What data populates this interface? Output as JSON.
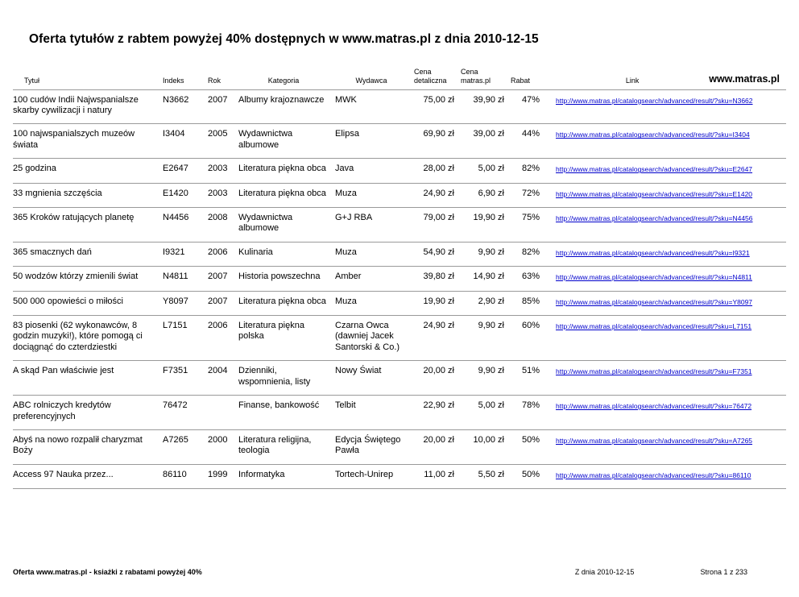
{
  "page": {
    "title": "Oferta tytułów z rabtem powyżej 40% dostępnych w www.matras.pl z dnia 2010-12-15",
    "brand": "www.matras.pl"
  },
  "table": {
    "headers": {
      "title": "Tytuł",
      "index": "Indeks",
      "year": "Rok",
      "category": "Kategoria",
      "publisher": "Wydawca",
      "price_retail": "Cena detaliczna",
      "price_matras": "Cena matras.pl",
      "discount": "Rabat",
      "link": "Link"
    },
    "rows": [
      {
        "title": "100 cudów Indii Najwspanialsze skarby cywilizacji i natury",
        "index": "N3662",
        "year": "2007",
        "category": "Albumy krajoznawcze",
        "publisher": "MWK",
        "price_retail": "75,00 zł",
        "price_matras": "39,90 zł",
        "discount": "47%",
        "link": "http://www.matras.pl/catalogsearch/advanced/result/?sku=N3662"
      },
      {
        "title": "100 najwspanialszych muzeów świata",
        "index": "I3404",
        "year": "2005",
        "category": "Wydawnictwa albumowe",
        "publisher": "Elipsa",
        "price_retail": "69,90 zł",
        "price_matras": "39,00 zł",
        "discount": "44%",
        "link": "http://www.matras.pl/catalogsearch/advanced/result/?sku=I3404"
      },
      {
        "title": "25 godzina",
        "index": "E2647",
        "year": "2003",
        "category": "Literatura piękna obca",
        "publisher": "Java",
        "price_retail": "28,00 zł",
        "price_matras": "5,00 zł",
        "discount": "82%",
        "link": "http://www.matras.pl/catalogsearch/advanced/result/?sku=E2647"
      },
      {
        "title": "33 mgnienia szczęścia",
        "index": "E1420",
        "year": "2003",
        "category": "Literatura piękna obca",
        "publisher": "Muza",
        "price_retail": "24,90 zł",
        "price_matras": "6,90 zł",
        "discount": "72%",
        "link": "http://www.matras.pl/catalogsearch/advanced/result/?sku=E1420"
      },
      {
        "title": "365 Kroków ratujących planetę",
        "index": "N4456",
        "year": "2008",
        "category": "Wydawnictwa albumowe",
        "publisher": "G+J RBA",
        "price_retail": "79,00 zł",
        "price_matras": "19,90 zł",
        "discount": "75%",
        "link": "http://www.matras.pl/catalogsearch/advanced/result/?sku=N4456"
      },
      {
        "title": "365 smacznych dań",
        "index": "I9321",
        "year": "2006",
        "category": "Kulinaria",
        "publisher": "Muza",
        "price_retail": "54,90 zł",
        "price_matras": "9,90 zł",
        "discount": "82%",
        "link": "http://www.matras.pl/catalogsearch/advanced/result/?sku=I9321"
      },
      {
        "title": "50 wodzów którzy zmienili świat",
        "index": "N4811",
        "year": "2007",
        "category": "Historia powszechna",
        "publisher": "Amber",
        "price_retail": "39,80 zł",
        "price_matras": "14,90 zł",
        "discount": "63%",
        "link": "http://www.matras.pl/catalogsearch/advanced/result/?sku=N4811"
      },
      {
        "title": "500 000 opowieści o miłości",
        "index": "Y8097",
        "year": "2007",
        "category": "Literatura piękna obca",
        "publisher": "Muza",
        "price_retail": "19,90 zł",
        "price_matras": "2,90 zł",
        "discount": "85%",
        "link": "http://www.matras.pl/catalogsearch/advanced/result/?sku=Y8097"
      },
      {
        "title": "83 piosenki (62 wykonawców, 8 godzin muzyki!), które pomogą ci dociągnąć do czterdziestki",
        "index": "L7151",
        "year": "2006",
        "category": "Literatura piękna polska",
        "publisher": "Czarna Owca (dawniej Jacek Santorski & Co.)",
        "price_retail": "24,90 zł",
        "price_matras": "9,90 zł",
        "discount": "60%",
        "link": "http://www.matras.pl/catalogsearch/advanced/result/?sku=L7151"
      },
      {
        "title": "A skąd Pan właściwie jest",
        "index": "F7351",
        "year": "2004",
        "category": "Dzienniki, wspomnienia, listy",
        "publisher": "Nowy Świat",
        "price_retail": "20,00 zł",
        "price_matras": "9,90 zł",
        "discount": "51%",
        "link": "http://www.matras.pl/catalogsearch/advanced/result/?sku=F7351"
      },
      {
        "title": "ABC rolniczych kredytów preferencyjnych",
        "index": "76472",
        "year": "",
        "category": "Finanse, bankowość",
        "publisher": "Telbit",
        "price_retail": "22,90 zł",
        "price_matras": "5,00 zł",
        "discount": "78%",
        "link": "http://www.matras.pl/catalogsearch/advanced/result/?sku=76472"
      },
      {
        "title": "Abyś na nowo rozpalił charyzmat Boży",
        "index": "A7265",
        "year": "2000",
        "category": "Literatura religijna, teologia",
        "publisher": "Edycja Świętego Pawła",
        "price_retail": "20,00 zł",
        "price_matras": "10,00 zł",
        "discount": "50%",
        "link": "http://www.matras.pl/catalogsearch/advanced/result/?sku=A7265"
      },
      {
        "title": "Access 97 Nauka przez...",
        "index": "86110",
        "year": "1999",
        "category": "Informatyka",
        "publisher": "Tortech-Unirep",
        "price_retail": "11,00 zł",
        "price_matras": "5,50 zł",
        "discount": "50%",
        "link": "http://www.matras.pl/catalogsearch/advanced/result/?sku=86110"
      }
    ]
  },
  "footer": {
    "left": "Oferta www.matras.pl - ksiażki z rabatami powyżej 40%",
    "date": "Z dnia 2010-12-15",
    "page": "Strona 1 z 233"
  }
}
